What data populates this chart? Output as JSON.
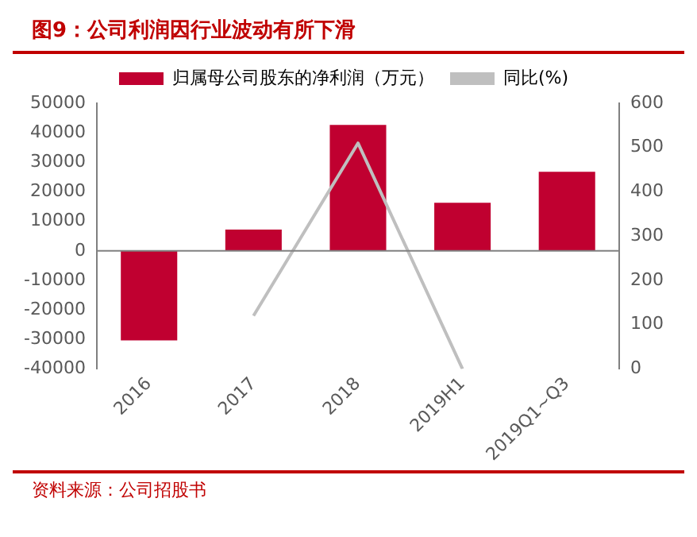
{
  "chart_data": {
    "type": "bar",
    "title": "图9：公司利润因行业波动有所下滑",
    "categories": [
      "2016",
      "2017",
      "2018",
      "2019H1",
      "2019Q1~Q3"
    ],
    "series": [
      {
        "name": "归属母公司股东的净利润（万元）",
        "color": "#c00030",
        "values": [
          -30300,
          7200,
          42700,
          16300,
          26800
        ]
      },
      {
        "name": "同比(%)",
        "type": "line",
        "axis": "y2",
        "color": "#bfbfbf",
        "values": [
          null,
          120,
          510,
          0,
          null
        ]
      }
    ],
    "ylim": [
      -40000,
      50000
    ],
    "yticks": [
      -40000,
      -30000,
      -20000,
      -10000,
      0,
      10000,
      20000,
      30000,
      40000,
      50000
    ],
    "y2lim": [
      0,
      600
    ],
    "y2ticks": [
      0,
      100,
      200,
      300,
      400,
      500,
      600
    ],
    "grid": false,
    "ref_lines": [
      {
        "axis": "y",
        "value": 0,
        "color": "#808080"
      }
    ],
    "legend": "top",
    "marker": "none",
    "annotations": [
      "资料来源：公司招股书"
    ]
  }
}
